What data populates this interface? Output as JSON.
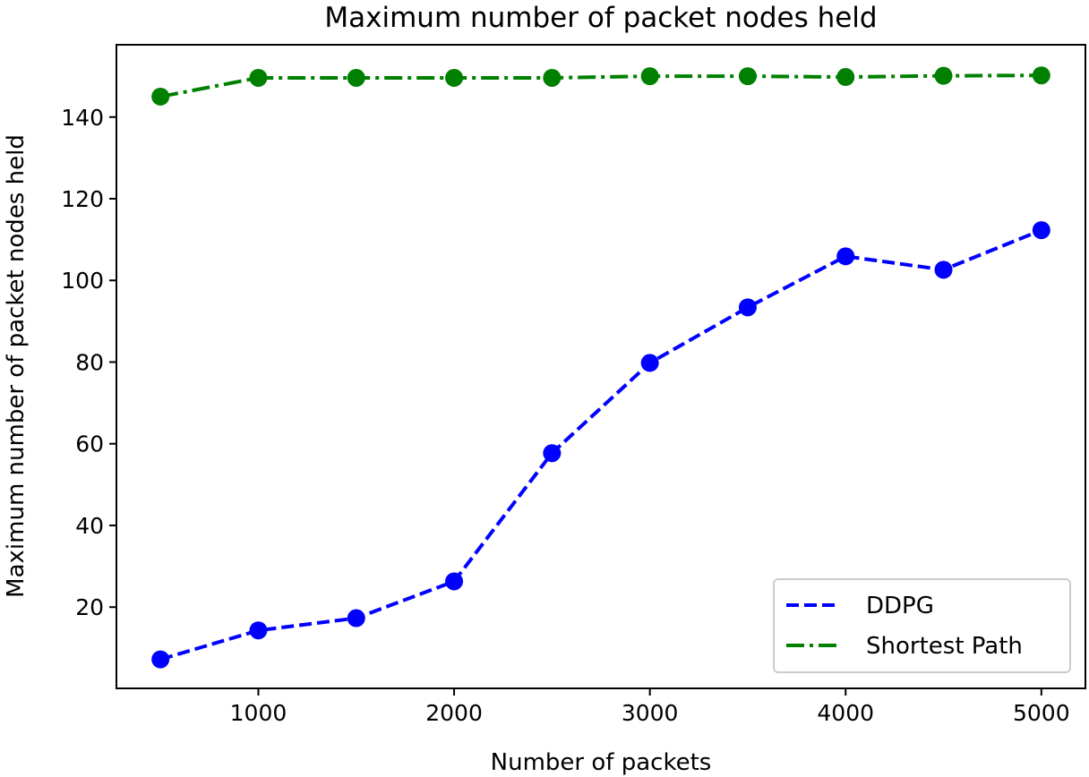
{
  "chart_data": {
    "type": "line",
    "title": "Maximum number of packet nodes held",
    "xlabel": "Number of packets",
    "ylabel": "Maximum number of packet nodes held",
    "x": [
      500,
      1000,
      1500,
      2000,
      2500,
      3000,
      3500,
      4000,
      4500,
      5000
    ],
    "xlim": [
      275,
      5225
    ],
    "ylim": [
      0.1,
      157.7
    ],
    "xticks": [
      1000,
      2000,
      3000,
      4000,
      5000
    ],
    "yticks": [
      20,
      40,
      60,
      80,
      100,
      120,
      140
    ],
    "grid": false,
    "legend_position": "lower-right",
    "series": [
      {
        "name": "DDPG",
        "color": "#0000ff",
        "style": "dashed",
        "marker": "circle",
        "values": [
          7.2,
          14.3,
          17.3,
          26.3,
          57.7,
          79.8,
          93.4,
          105.9,
          102.6,
          112.3
        ]
      },
      {
        "name": "Shortest Path",
        "color": "#008000",
        "style": "dashdot",
        "marker": "circle",
        "values": [
          145.0,
          149.6,
          149.6,
          149.6,
          149.6,
          150.0,
          150.0,
          149.8,
          150.1,
          150.2
        ]
      }
    ]
  }
}
